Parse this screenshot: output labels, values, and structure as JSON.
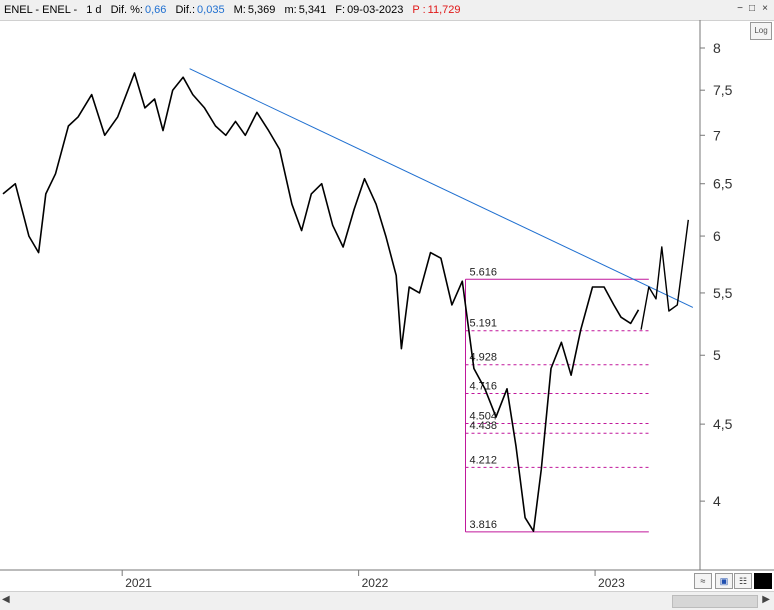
{
  "header": {
    "symbol": "ENEL - ENEL -",
    "interval": "1 d",
    "dif_pct_label": "Dif. %:",
    "dif_pct_value": "0,66",
    "dif_label": "Dif.:",
    "dif_value": "0,035",
    "max_label": "M:",
    "max_value": "5,369",
    "min_label": "m:",
    "min_value": "5,341",
    "date_label": "F:",
    "date_value": "09-03-2023",
    "p_label": "P :",
    "p_value": "11,729"
  },
  "log_button": "Log",
  "colors": {
    "price": "#000000",
    "trendline": "#1f6fd0",
    "fibonacci": "#c0179b"
  },
  "chart_data": {
    "type": "line",
    "title": "",
    "y_scale": "log",
    "ylim": [
      3.6,
      8.35
    ],
    "y_ticks": [
      8,
      7.5,
      7,
      6.5,
      6,
      5.5,
      5,
      4.5,
      4
    ],
    "y_tick_labels": [
      "8",
      "7,5",
      "7",
      "6,5",
      "6",
      "5,5",
      "5",
      "4,5",
      "4"
    ],
    "xlim": [
      "2020-07-01",
      "2023-06-12"
    ],
    "x_ticks": [
      "2021-01-01",
      "2022-01-01",
      "2023-01-01"
    ],
    "x_tick_labels": [
      "2021",
      "2022",
      "2023"
    ],
    "grid": false,
    "series": [
      {
        "x": [
          "2020-07-01",
          "2020-07-20",
          "2020-08-10",
          "2020-08-25",
          "2020-09-05",
          "2020-09-20",
          "2020-10-10",
          "2020-10-25",
          "2020-11-15",
          "2020-12-05",
          "2020-12-25",
          "2021-01-20",
          "2021-02-05",
          "2021-02-20",
          "2021-03-05",
          "2021-03-20",
          "2021-04-05",
          "2021-04-20",
          "2021-05-08",
          "2021-05-25",
          "2021-06-10",
          "2021-06-25",
          "2021-07-10",
          "2021-07-28",
          "2021-08-15",
          "2021-09-01",
          "2021-09-20",
          "2021-10-05",
          "2021-10-20",
          "2021-11-05",
          "2021-11-22",
          "2021-12-08",
          "2021-12-25",
          "2022-01-10",
          "2022-01-28",
          "2022-02-12",
          "2022-02-28",
          "2022-03-08",
          "2022-03-20",
          "2022-04-05",
          "2022-04-22",
          "2022-05-08",
          "2022-05-25",
          "2022-06-10",
          "2022-06-28",
          "2022-07-15",
          "2022-08-01",
          "2022-08-18",
          "2022-09-01",
          "2022-09-15",
          "2022-09-28",
          "2022-10-10",
          "2022-10-25",
          "2022-11-10",
          "2022-11-25",
          "2022-12-10",
          "2022-12-28",
          "2023-01-15",
          "2023-01-30",
          "2023-02-10",
          "2023-02-25",
          "2023-03-09"
        ],
        "y": [
          6.4,
          6.5,
          6.0,
          5.85,
          6.4,
          6.6,
          7.1,
          7.2,
          7.45,
          7.0,
          7.2,
          7.7,
          7.3,
          7.4,
          7.05,
          7.5,
          7.65,
          7.45,
          7.3,
          7.1,
          7.0,
          7.15,
          7.0,
          7.25,
          7.05,
          6.85,
          6.3,
          6.05,
          6.4,
          6.5,
          6.1,
          5.9,
          6.25,
          6.55,
          6.3,
          6.0,
          5.65,
          5.05,
          5.55,
          5.5,
          5.85,
          5.8,
          5.4,
          5.6,
          4.9,
          4.75,
          4.55,
          4.75,
          4.35,
          3.9,
          3.82,
          4.2,
          4.9,
          5.1,
          4.85,
          5.2,
          5.55,
          5.55,
          5.4,
          5.3,
          5.25,
          5.36
        ]
      },
      {
        "x": [
          "2021-04-15",
          "2023-06-01"
        ],
        "y": [
          7.75,
          5.38
        ]
      },
      {
        "x": [
          "2023-03-13",
          "2023-03-25",
          "2023-04-05",
          "2023-04-14",
          "2023-04-25",
          "2023-05-08",
          "2023-05-25"
        ],
        "y": [
          5.2,
          5.55,
          5.45,
          5.9,
          5.35,
          5.4,
          6.15
        ]
      }
    ],
    "fibonacci": {
      "x_start": "2022-06-15",
      "x_end": "2023-03-25",
      "levels": [
        5.616,
        5.191,
        4.928,
        4.716,
        4.504,
        4.438,
        4.212,
        3.816
      ],
      "level_labels": [
        "5.616",
        "5.191",
        "4.928",
        "4.716",
        "4.504",
        "4.438",
        "4.212",
        "3.816"
      ]
    }
  }
}
